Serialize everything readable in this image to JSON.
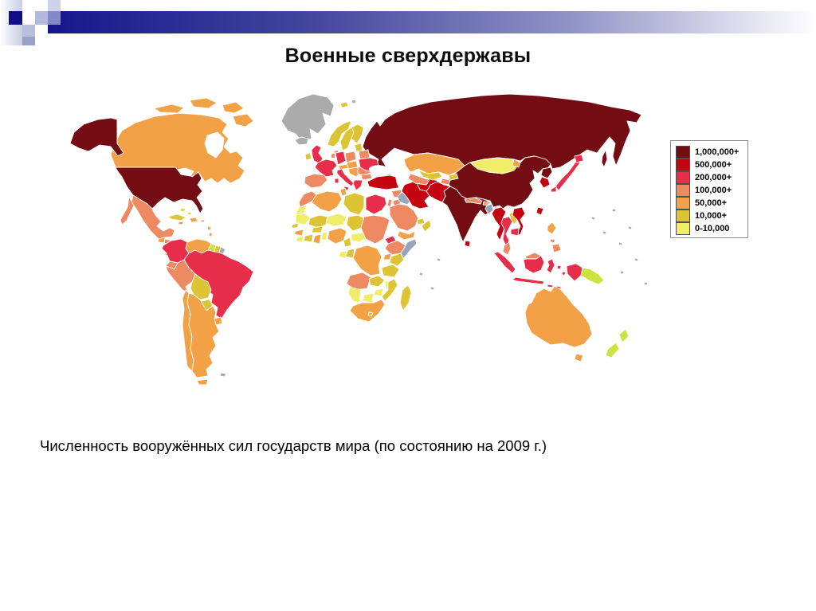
{
  "slide": {
    "title": "Военные сверхдержавы",
    "caption": "Численность вооружённых сил государств мира (по состоянию на 2009 г.)"
  },
  "legend": {
    "items": [
      {
        "label": "1,000,000+",
        "cat": "t1000000"
      },
      {
        "label": "500,000+",
        "cat": "t500000"
      },
      {
        "label": "200,000+",
        "cat": "t200000"
      },
      {
        "label": "100,000+",
        "cat": "t100000"
      },
      {
        "label": "50,000+",
        "cat": "t50000"
      },
      {
        "label": "10,000+",
        "cat": "t10000"
      },
      {
        "label": "0-10,000",
        "cat": "t0_10000"
      }
    ]
  },
  "palette": {
    "t1000000": "#730d13",
    "t500000": "#c40511",
    "t200000": "#e62e4a",
    "t100000": "#ee8a63",
    "t50000": "#f2a147",
    "t10000": "#dcc434",
    "t0_10000": "#f0ee68",
    "no_data": "#ababab",
    "no_data_blue": "#9aa4bc",
    "pale_green": "#cbe23f",
    "sea": "#ffffff"
  },
  "decor": {
    "bar_from": "#16168b",
    "bar_mid1": "#44479c",
    "bar_mid2": "#9093c5",
    "bar_end": "#ffffff",
    "strip_from": "#fefeff",
    "strip_to": "#c9cde3",
    "navy": "#0f0e88",
    "squares": [
      "#cdd1ea",
      "#b3b8dc",
      "#8289c5",
      "#b9bedd",
      "#9aa0cc"
    ]
  },
  "map": {
    "year": "2009",
    "regions": {
      "canada": "t50000",
      "arctic-canada": "t50000",
      "hudson-bay": "sea",
      "alaska": "t1000000",
      "greenland": "no_data",
      "iceland": "no_data",
      "usa": "t1000000",
      "great-lakes": "sea",
      "mexico": "t100000",
      "cuba": "t10000",
      "hispaniola": "t50000",
      "jamaica": "t100000",
      "puerto-rico": "t50000",
      "bahamas": "pale_green",
      "antilles": "t50000",
      "guatemala": "t50000",
      "honduras": "t100000",
      "nicaragua": "t50000",
      "costa-rica": "t10000",
      "panama": "t50000",
      "colombia": "t200000",
      "venezuela": "t50000",
      "guyana": "pale_green",
      "suriname": "t10000",
      "french-guiana": "no_data",
      "brazil": "t200000",
      "ecuador": "t100000",
      "peru": "t100000",
      "bolivia": "t10000",
      "paraguay": "t10000",
      "uruguay": "t50000",
      "chile": "t50000",
      "argentina": "t50000",
      "tierra-del-fuego": "t50000",
      "falklands": "no_data",
      "norway": "t10000",
      "sweden": "t10000",
      "finland": "t10000",
      "uk": "t200000",
      "ireland": "t10000",
      "denmark": "t100000",
      "baltics": "t10000",
      "belarus": "t100000",
      "poland": "t100000",
      "germany": "t200000",
      "netherlands": "t100000",
      "france": "t200000",
      "spain": "t100000",
      "alpine": "t50000",
      "central-europe": "t50000",
      "italy": "t200000",
      "balkans": "t50000",
      "romania": "t100000",
      "bulgaria": "t100000",
      "greece": "t200000",
      "ukraine": "t200000",
      "russia": "t1000000",
      "svalbard": "t10000",
      "svalbard-gray": "no_data",
      "black-sea": "sea",
      "caspian-sea": "sea",
      "georgia": "t100000",
      "azerbaijan": "t50000",
      "armenia": "t10000",
      "turkey": "t500000",
      "syria": "t100000",
      "israel": "t100000",
      "jordan": "t100000",
      "iraq": "no_data_blue",
      "iran": "t500000",
      "afghanistan": "t500000",
      "pakistan": "t500000",
      "kazakhstan": "t50000",
      "uzbekistan": "t10000",
      "turkmenistan": "t100000",
      "kyrgyzstan": "t10000",
      "tajikistan": "t100000",
      "saudi-arabia": "t100000",
      "qatar-uae": "t10000",
      "oman": "t10000",
      "yemen": "t50000",
      "india": "t1000000",
      "nepal": "t100000",
      "bhutan": "t50000",
      "bangladesh": "no_data_blue",
      "sri-lanka": "t500000",
      "china": "t1000000",
      "mongolia": "t0_10000",
      "mongolia-east": "t50000",
      "north-korea": "t1000000",
      "south-korea": "t500000",
      "japan": "t200000",
      "taiwan": "t500000",
      "myanmar": "t500000",
      "thailand": "t200000",
      "laos": "t10000",
      "vietnam": "t500000",
      "cambodia": "t200000",
      "malaysia": "t100000",
      "sumatra": "t200000",
      "borneo-malaysia": "t100000",
      "borneo-indonesia": "t200000",
      "java": "t200000",
      "sulawesi": "t200000",
      "lesser-sunda": "t200000",
      "moluccas": "t200000",
      "philippines-luzon": "t50000",
      "philippines-visayas": "t100000",
      "philippines-mindanao": "t100000",
      "new-guinea-west": "t200000",
      "papua-new-guinea": "pale_green",
      "australia": "t50000",
      "tasmania": "t50000",
      "new-zealand": "pale_green",
      "morocco": "t100000",
      "western-sahara": "t0_10000",
      "mauritania": "t0_10000",
      "algeria": "t50000",
      "tunisia": "t50000",
      "libya": "t10000",
      "egypt": "t200000",
      "mali": "t10000",
      "niger": "t0_10000",
      "chad": "t10000",
      "senegal": "t10000",
      "guinea": "t50000",
      "sierra-leone": "t0_10000",
      "ivory-coast": "t10000",
      "ghana": "t50000",
      "burkina-faso": "t10000",
      "togo-benin": "t0_10000",
      "nigeria": "t50000",
      "cameroon": "t10000",
      "central-african-republic": "t0_10000",
      "sudan": "t100000",
      "eritrea": "t200000",
      "ethiopia": "t100000",
      "somalia": "no_data_blue",
      "kenya": "t10000",
      "uganda": "t50000",
      "dr-congo": "t50000",
      "congo": "t10000",
      "gabon": "t0_10000",
      "tanzania": "t10000",
      "angola": "t100000",
      "zambia": "t10000",
      "malawi": "t0_10000",
      "mozambique": "t10000",
      "zimbabwe": "t0_10000",
      "botswana": "t0_10000",
      "namibia": "t0_10000",
      "south-africa": "t50000",
      "lesotho": "t10000",
      "madagascar": "t10000",
      "pacific-islands": "no_data",
      "indian-islands": "no_data"
    }
  }
}
